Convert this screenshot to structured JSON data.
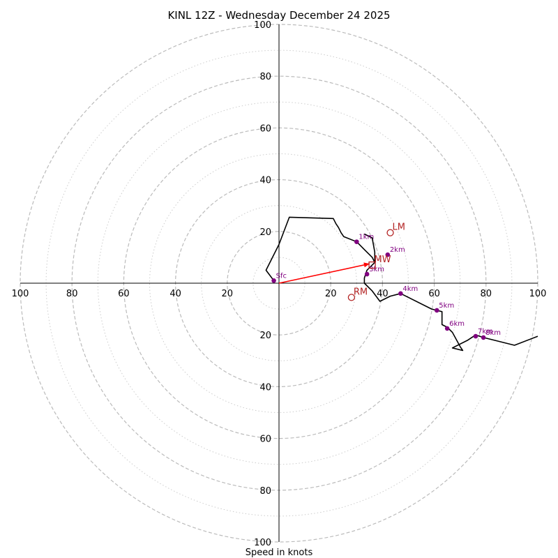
{
  "chart_data": {
    "type": "hodograph",
    "title": "KINL 12Z - Wednesday December 24 2025",
    "xlabel": "Speed in knots",
    "range_kt": [
      -100,
      100
    ],
    "rings_dashed_kt": [
      20,
      40,
      60,
      80,
      100
    ],
    "rings_dotted_kt": [
      10,
      30,
      50,
      70,
      90
    ],
    "tick_values": [
      20,
      40,
      60,
      80,
      100
    ],
    "tick_labels": [
      "20",
      "40",
      "60",
      "80",
      "100"
    ],
    "colors": {
      "rings": "#bbbbbb",
      "axes": "#000000",
      "trace": "#000000",
      "height_points": "#800080",
      "storm_motion": "#b22222",
      "shear_vector": "#ff0000"
    },
    "trace": [
      [
        -2,
        1
      ],
      [
        -5,
        5
      ],
      [
        0,
        15
      ],
      [
        4,
        25.5
      ],
      [
        21,
        25
      ],
      [
        22,
        23
      ],
      [
        23,
        21.5
      ],
      [
        24,
        19.5
      ],
      [
        25,
        18
      ],
      [
        30,
        16
      ],
      [
        33,
        13
      ],
      [
        36,
        10
      ],
      [
        37,
        8
      ],
      [
        34,
        5
      ],
      [
        33,
        2
      ],
      [
        33,
        0
      ],
      [
        36,
        -3
      ],
      [
        39,
        -7
      ],
      [
        43,
        -5
      ],
      [
        47,
        -4
      ],
      [
        59,
        -10
      ],
      [
        63,
        -11
      ],
      [
        63,
        -16
      ],
      [
        65,
        -17
      ],
      [
        67,
        -19
      ],
      [
        70,
        -24.5
      ],
      [
        71,
        -26
      ],
      [
        67,
        -25
      ],
      [
        73,
        -22
      ],
      [
        76,
        -20
      ],
      [
        79,
        -21
      ],
      [
        91,
        -24
      ],
      [
        100,
        -20.5
      ]
    ],
    "trace_loop": [
      [
        33,
        19
      ],
      [
        36,
        17.5
      ],
      [
        37,
        12
      ],
      [
        37,
        8
      ]
    ],
    "height_points": [
      {
        "label": "Sfc",
        "u": -2,
        "v": 1
      },
      {
        "label": "1km",
        "u": 30,
        "v": 16
      },
      {
        "label": "2km",
        "u": 42,
        "v": 11
      },
      {
        "label": "3km",
        "u": 34,
        "v": 3.5
      },
      {
        "label": "4km",
        "u": 47,
        "v": -4
      },
      {
        "label": "5km",
        "u": 61,
        "v": -10.5
      },
      {
        "label": "6km",
        "u": 65,
        "v": -17.5
      },
      {
        "label": "7km",
        "u": 76,
        "v": -20.5
      },
      {
        "label": "8km",
        "u": 79,
        "v": -21
      }
    ],
    "storm_motion": [
      {
        "label": "LM",
        "u": 43,
        "v": 19.5,
        "marker": "circle"
      },
      {
        "label": "MW",
        "u": 36,
        "v": 7,
        "marker": "square"
      },
      {
        "label": "RM",
        "u": 28,
        "v": -5.5,
        "marker": "circle"
      }
    ],
    "shear_vector": {
      "from": [
        0,
        0
      ],
      "to": [
        35,
        7.5
      ]
    }
  }
}
